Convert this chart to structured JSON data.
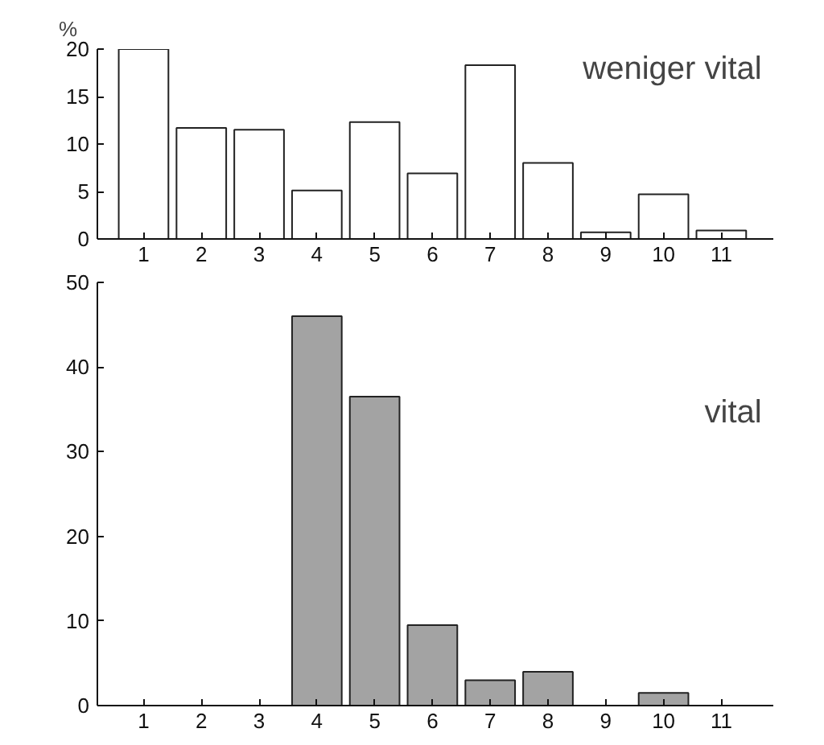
{
  "chart_data": [
    {
      "type": "bar",
      "ylabel": "%",
      "annotations": [
        "weniger vital"
      ],
      "categories": [
        "1",
        "2",
        "3",
        "4",
        "5",
        "6",
        "7",
        "8",
        "9",
        "10",
        "11"
      ],
      "values": [
        20,
        11.7,
        11.5,
        5.1,
        12.3,
        6.9,
        18.3,
        8.0,
        0.7,
        4.7,
        0.9
      ],
      "color": "#ffffff",
      "ylim": [
        0,
        20
      ],
      "yticks": [
        0,
        5,
        10,
        15,
        20
      ],
      "grid": false
    },
    {
      "type": "bar",
      "annotations": [
        "vital"
      ],
      "categories": [
        "1",
        "2",
        "3",
        "4",
        "5",
        "6",
        "7",
        "8",
        "9",
        "10",
        "11"
      ],
      "values": [
        0,
        0,
        0,
        46,
        36.5,
        9.5,
        3,
        4,
        0,
        1.5,
        0
      ],
      "color": "#a3a3a3",
      "ylim": [
        0,
        50
      ],
      "yticks": [
        0,
        10,
        20,
        30,
        40,
        50
      ],
      "grid": false
    }
  ]
}
